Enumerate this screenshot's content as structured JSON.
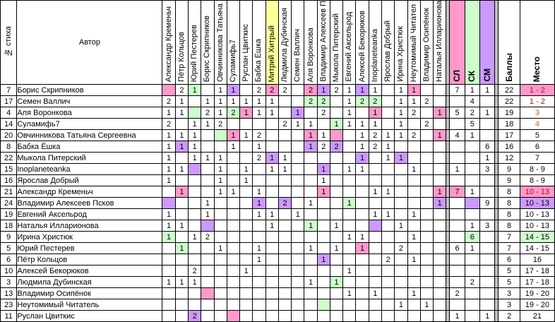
{
  "header": {
    "num_label": "№ стиха",
    "author_label": "Автор",
    "judges": [
      {
        "name": "Александр Кременьч",
        "color": ""
      },
      {
        "name": "Пётр Кольцов",
        "color": ""
      },
      {
        "name": "Юрий Пестерев",
        "color": ""
      },
      {
        "name": "Борис Скрипников",
        "color": ""
      },
      {
        "name": "Овчинникова Татьяна",
        "color": ""
      },
      {
        "name": "Суламифь7",
        "color": ""
      },
      {
        "name": "Руслан Цвиткис",
        "color": ""
      },
      {
        "name": "Бабка Ёшка",
        "color": ""
      },
      {
        "name": "Митрий Хитрый",
        "color": "#ffff99"
      },
      {
        "name": "Людмила Дубинская",
        "color": ""
      },
      {
        "name": "Семен Валлич",
        "color": ""
      },
      {
        "name": "Аля Воронкова",
        "color": ""
      },
      {
        "name": "Владимир Алексеев П",
        "color": ""
      },
      {
        "name": "Мыкола Питерский",
        "color": ""
      },
      {
        "name": "Евгений Аксельрод",
        "color": ""
      },
      {
        "name": "Алексей Бекорюков",
        "color": ""
      },
      {
        "name": "Inoplaneteanka",
        "color": ""
      },
      {
        "name": "Ярослав Добрый",
        "color": ""
      },
      {
        "name": "Ирина Христюк",
        "color": ""
      },
      {
        "name": "Неутомимый Читател",
        "color": ""
      },
      {
        "name": "Владимир Осипёнок",
        "color": ""
      },
      {
        "name": "Наталья Илларионова",
        "color": ""
      }
    ],
    "sums": [
      {
        "name": "СЛ",
        "color": "#ff99cc"
      },
      {
        "name": "СК",
        "color": "#ccffcc"
      },
      {
        "name": "СМ",
        "color": "#cc99ff"
      }
    ],
    "total_label": "Баллы",
    "place_label": "Место"
  },
  "rows": [
    {
      "num": "7",
      "author": "Борис Скрипников",
      "cells": [
        "p",
        "2",
        "g1",
        "",
        "1",
        "u1",
        "",
        "2",
        "p2",
        "2",
        "",
        "p2",
        "u1",
        "2",
        "1",
        "u1",
        "1",
        "",
        "1",
        "p1",
        "",
        ""
      ],
      "sums": [
        "7",
        "1",
        "1"
      ],
      "total": "22",
      "place": "1 - 2",
      "place_color": "#ff99cc",
      "place_text_color": "#cc0000"
    },
    {
      "num": "17",
      "author": "Семен Валлич",
      "cells": [
        "2",
        "1",
        "",
        "1",
        "1",
        "1",
        "1",
        "1",
        "1",
        "",
        "",
        "g2",
        "g2",
        "",
        "1",
        "g2",
        "g2",
        "",
        "1",
        "1",
        "2",
        ""
      ],
      "sums": [
        "",
        "4",
        ""
      ],
      "total": "22",
      "place": "1 - 2",
      "place_color": "",
      "place_text_color": "#cc0000"
    },
    {
      "num": "4",
      "author": "Аля Воронкова",
      "cells": [
        "1",
        "1",
        "g",
        "2",
        "1",
        "g2",
        "p1",
        "1",
        "1",
        "",
        "u1",
        "",
        "2",
        "",
        "1",
        "",
        "p1",
        "",
        "1",
        "2",
        "",
        "p1"
      ],
      "sums": [
        "5",
        "2",
        "1"
      ],
      "total": "19",
      "place": "3",
      "place_color": "",
      "place_text_color": "#cc6600"
    },
    {
      "num": "14",
      "author": "Суламифь7",
      "cells": [
        "2",
        "",
        "1",
        "1",
        "2",
        "",
        "",
        "",
        "",
        "2",
        "1",
        "1",
        "",
        "g1",
        "1",
        "1",
        "1",
        "",
        "1",
        "",
        "2",
        ""
      ],
      "sums": [
        "",
        "5",
        ""
      ],
      "total": "18",
      "place": "4",
      "place_color": "",
      "place_text_color": "#cc6600"
    },
    {
      "num": "20",
      "author": "Овчинникова Татьяна Сергеевна",
      "cells": [
        "1",
        "1",
        "1",
        "",
        "g",
        "p1",
        "1",
        "2",
        "",
        "",
        "",
        "p1",
        "1",
        "p",
        "",
        "1",
        "2",
        "1",
        "1",
        "2",
        "",
        "p1"
      ],
      "sums": [
        "4",
        "1",
        ""
      ],
      "total": "17",
      "place": "5",
      "place_color": "",
      "place_text_color": "#000000"
    },
    {
      "num": "8",
      "author": "Бабка Ёшка",
      "cells": [
        "1",
        "u1",
        "1",
        "",
        "",
        "1",
        "",
        "1",
        "",
        "",
        "",
        "u1",
        "2",
        "u2",
        "",
        "1",
        "2",
        "1",
        "",
        "",
        "",
        ""
      ],
      "sums": [
        "",
        "",
        "6"
      ],
      "total": "16",
      "place": "6",
      "place_color": "",
      "place_text_color": "#000000"
    },
    {
      "num": "22",
      "author": "Мыкола Питерский",
      "cells": [
        "1",
        "",
        "1",
        "1",
        "1",
        "",
        "",
        "2",
        "u1",
        "1",
        "",
        "",
        "",
        "",
        "",
        "u1",
        "",
        "1",
        "u1",
        "",
        "",
        ""
      ],
      "sums": [
        "",
        "",
        "1"
      ],
      "total": "12",
      "place": "7",
      "place_color": "",
      "place_text_color": "#000000"
    },
    {
      "num": "15",
      "author": "Inoplaneteanka",
      "cells": [
        "1",
        "1",
        "u",
        "",
        "1",
        "",
        "1",
        "",
        "1",
        "1",
        "",
        "",
        "u1",
        "",
        "1",
        "1",
        "",
        "",
        "",
        "1",
        "",
        ""
      ],
      "sums": [
        "1",
        "",
        "3"
      ],
      "total": "9",
      "place": "8 - 9",
      "place_color": "",
      "place_text_color": "#000000"
    },
    {
      "num": "16",
      "author": "Ярослав Добрый",
      "cells": [
        "1",
        "",
        "",
        "",
        "1",
        "",
        "1",
        "",
        "",
        "",
        "",
        "",
        "1",
        "",
        "",
        "",
        "",
        "",
        "",
        "",
        "",
        ""
      ],
      "sums": [
        "",
        "",
        ""
      ],
      "total": "9",
      "place": "8 - 9",
      "place_color": "",
      "place_text_color": "#000000"
    },
    {
      "num": "21",
      "author": "Александр Кременьч",
      "cells": [
        "",
        "p1",
        "",
        "",
        "1",
        "1",
        "",
        "1",
        "",
        "",
        "",
        "",
        "p1",
        "",
        "",
        "",
        "1",
        "1",
        "",
        "",
        "",
        "p1"
      ],
      "sums": [
        "p7",
        "1",
        ""
      ],
      "total": "8",
      "place": "10 - 13",
      "place_color": "#ff99cc",
      "place_text_color": "#cc0000"
    },
    {
      "num": "24",
      "author": "Владимир Алексеев Псков",
      "cells": [
        "u",
        "",
        "",
        "1",
        "",
        "",
        "",
        "u1",
        "",
        "u2",
        "",
        "1",
        "",
        "",
        "g1",
        "",
        "",
        "",
        "",
        "",
        "",
        "u1"
      ],
      "sums": [
        "",
        "u",
        "9"
      ],
      "total": "8",
      "place": "10 - 13",
      "place_color": "#cc99ff",
      "place_text_color": "#000000"
    },
    {
      "num": "19",
      "author": "Евгений Аксельрод",
      "cells": [
        "1",
        "",
        "",
        "1",
        "",
        "",
        "",
        "1",
        "1",
        "",
        "1",
        "",
        "",
        "",
        "",
        "",
        "1",
        "1",
        "",
        "1",
        "",
        ""
      ],
      "sums": [
        "",
        "",
        ""
      ],
      "total": "8",
      "place": "10 - 13",
      "place_color": "",
      "place_text_color": "#000000"
    },
    {
      "num": "18",
      "author": "Наталья Илларионова",
      "cells": [
        "1",
        "1",
        "",
        "u",
        "",
        "",
        "",
        "",
        "1",
        "",
        "",
        "g1",
        "",
        "1",
        "",
        "",
        "u",
        "",
        "1",
        "",
        "",
        ""
      ],
      "sums": [
        "",
        "1",
        "3"
      ],
      "total": "8",
      "place": "10 - 13",
      "place_color": "",
      "place_text_color": "#000000"
    },
    {
      "num": "9",
      "author": "Ирина Христюк",
      "cells": [
        "g1",
        "",
        "1",
        "2",
        "",
        "",
        "",
        "",
        "",
        "",
        "",
        "",
        "",
        "",
        "1",
        "1",
        "",
        "",
        "",
        "1",
        "",
        ""
      ],
      "sums": [
        "",
        "g6",
        ""
      ],
      "total": "7",
      "place": "14 - 15",
      "place_color": "#ccffcc",
      "place_text_color": "#000000"
    },
    {
      "num": "5",
      "author": "Юрий Пестерев",
      "cells": [
        "",
        "g1",
        "",
        "",
        "1",
        "",
        "",
        "1",
        "",
        "",
        "",
        "1",
        "",
        "1",
        "",
        "p1",
        "",
        "",
        "2",
        "",
        "",
        ""
      ],
      "sums": [
        "6",
        "1",
        ""
      ],
      "total": "7",
      "place": "14 - 15",
      "place_color": "",
      "place_text_color": "#000000"
    },
    {
      "num": "6",
      "author": "Пётр Кольцов",
      "cells": [
        "",
        "",
        "",
        "",
        "",
        "",
        "",
        "1",
        "",
        "",
        "",
        "",
        "u1",
        "",
        "",
        "",
        "",
        "2",
        "",
        "1",
        "",
        ""
      ],
      "sums": [
        "",
        "",
        ""
      ],
      "total": "6",
      "place": "16",
      "place_color": "",
      "place_text_color": "#000000"
    },
    {
      "num": "10",
      "author": "Алексей Бекорюков",
      "cells": [
        "",
        "",
        "2",
        "",
        "",
        "",
        "1",
        "",
        "",
        "",
        "",
        "",
        "",
        "",
        "1",
        "",
        "",
        "",
        "",
        "",
        "",
        ""
      ],
      "sums": [
        "",
        "",
        ""
      ],
      "total": "5",
      "place": "17 - 18",
      "place_color": "",
      "place_text_color": "#000000"
    },
    {
      "num": "3",
      "author": "Людмила Дубинская",
      "cells": [
        "1",
        "1",
        "1",
        "",
        "",
        "",
        "",
        "",
        "",
        "",
        "",
        "1",
        "",
        "g1",
        "",
        "",
        "",
        "",
        "",
        "",
        "",
        ""
      ],
      "sums": [
        "",
        "2",
        ""
      ],
      "total": "5",
      "place": "17 - 18",
      "place_color": "",
      "place_text_color": "#000000"
    },
    {
      "num": "13",
      "author": "Владимир Осипёнок",
      "cells": [
        "",
        "",
        "",
        "p",
        "",
        "",
        "",
        "",
        "",
        "",
        "",
        "",
        "",
        "",
        "1",
        "",
        "1",
        "",
        "",
        "1",
        "",
        ""
      ],
      "sums": [
        "2",
        "",
        ""
      ],
      "total": "3",
      "place": "19 - 20",
      "place_color": "",
      "place_text_color": "#000000"
    },
    {
      "num": "23",
      "author": "Неутомимый Читатель",
      "cells": [
        "",
        "",
        "",
        "",
        "",
        "",
        "",
        "",
        "",
        "",
        "",
        "",
        "g",
        "",
        "",
        "",
        "",
        "",
        "1",
        "",
        "1",
        ""
      ],
      "sums": [
        "",
        "",
        ""
      ],
      "total": "3",
      "place": "19 - 20",
      "place_color": "",
      "place_text_color": "#000000"
    },
    {
      "num": "11",
      "author": "Руслан Цвиткис",
      "cells": [
        "",
        "",
        "u2",
        "",
        "",
        "p",
        "",
        "",
        "",
        "",
        "",
        "",
        "",
        "",
        "",
        "",
        "",
        "",
        "",
        "",
        "",
        ""
      ],
      "sums": [
        "1",
        "",
        "1"
      ],
      "total": "2",
      "place": "21",
      "place_color": "",
      "place_text_color": "#000000"
    }
  ]
}
